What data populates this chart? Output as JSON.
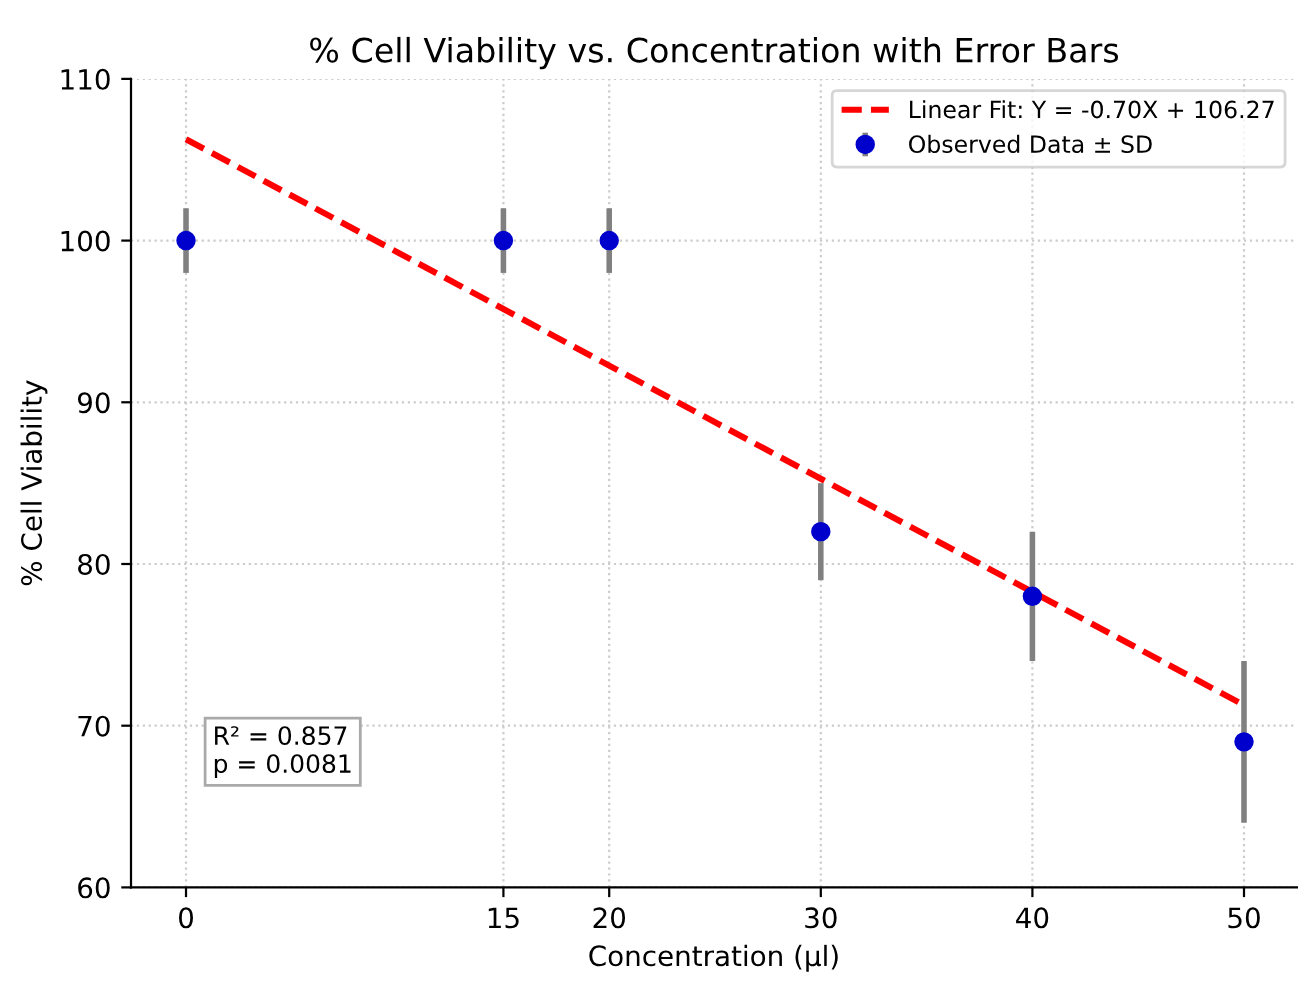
{
  "chart_data": {
    "type": "scatter",
    "title": "% Cell Viability vs. Concentration with Error Bars",
    "xlabel": "Concentration (µl)",
    "ylabel": "% Cell Viability",
    "x": [
      0,
      15,
      20,
      30,
      40,
      50
    ],
    "series": [
      {
        "name": "Linear Fit: Y = -0.70X + 106.27",
        "type": "line",
        "color": "#ff0000",
        "line_style": "dashed",
        "marker": "none",
        "x": [
          0,
          50
        ],
        "values": [
          106.27,
          71.27
        ]
      },
      {
        "name": "Observed Data ± SD",
        "color": "#0000cd",
        "marker": "circle",
        "values": [
          100,
          100,
          100,
          82,
          78,
          69
        ],
        "errors": [
          2,
          2,
          2,
          3,
          4,
          5
        ]
      }
    ],
    "xlim": [
      -2.6,
      52.5
    ],
    "xticks": [
      0,
      15,
      20,
      30,
      40,
      50
    ],
    "ylim": [
      60,
      110
    ],
    "yticks": [
      60,
      70,
      80,
      90,
      100,
      110
    ],
    "grid": true,
    "legend": "top right",
    "annotations": [
      "R² = 0.857\np = 0.0081"
    ]
  }
}
